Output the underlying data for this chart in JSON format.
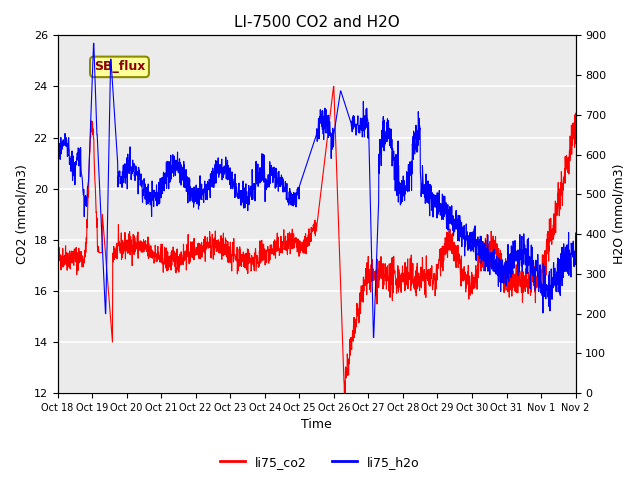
{
  "title": "LI-7500 CO2 and H2O",
  "xlabel": "Time",
  "ylabel_left": "CO2 (mmol/m3)",
  "ylabel_right": "H2O (mmol/m3)",
  "ylim_left": [
    12,
    26
  ],
  "ylim_right": [
    0,
    900
  ],
  "yticks_left": [
    12,
    14,
    16,
    18,
    20,
    22,
    24,
    26
  ],
  "yticks_right": [
    0,
    100,
    200,
    300,
    400,
    500,
    600,
    700,
    800,
    900
  ],
  "legend_labels": [
    "li75_co2",
    "li75_h2o"
  ],
  "tick_positions": [
    0,
    1,
    2,
    3,
    4,
    5,
    6,
    7,
    8,
    9,
    10,
    11,
    12,
    13,
    14,
    15
  ],
  "tick_labels": [
    "Oct 18",
    "Oct 19",
    "Oct 20",
    "Oct 21",
    "Oct 22",
    "Oct 23",
    "Oct 24",
    "Oct 25",
    "Oct 26",
    "Oct 27",
    "Oct 28",
    "Oct 29",
    "Oct 30",
    "Oct 31",
    "Nov 1",
    "Nov 2"
  ],
  "annotation_text": "SB_flux",
  "annotation_color": "#8B0000",
  "annotation_bg": "#FFFF99",
  "annotation_border": "#8B8B00",
  "co2_color": "red",
  "h2o_color": "blue",
  "plot_bg": "#EBEBEB",
  "grid_color": "white",
  "seed": 42
}
